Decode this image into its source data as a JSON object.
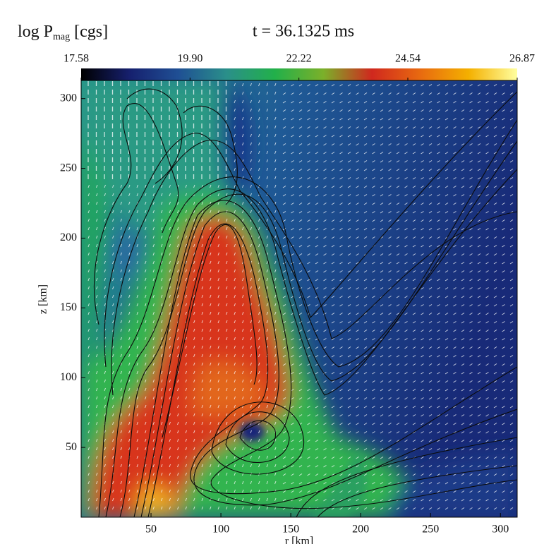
{
  "chart_data": {
    "type": "heatmap",
    "title": "log P",
    "title_sub": "mag",
    "title_unit": "[cgs]",
    "subtitle": "t = 36.1325 ms",
    "xlabel": "r [km]",
    "ylabel": "z [km]",
    "xlim": [
      0,
      312
    ],
    "ylim": [
      0,
      313
    ],
    "xticks": [
      50,
      100,
      150,
      200,
      250,
      300
    ],
    "yticks": [
      50,
      100,
      150,
      200,
      250,
      300
    ],
    "colorbar": {
      "lim": [
        17.58,
        26.87
      ],
      "ticks": [
        17.58,
        {
          "value": 19.9,
          "label": "19.90"
        },
        22.22,
        24.54,
        26.87
      ],
      "colors": [
        "#000000",
        "#16206e",
        "#1f4f94",
        "#2a8f8a",
        "#22b04a",
        "#7bb02a",
        "#d0281e",
        "#e86a10",
        "#f4b000",
        "#ffffa0"
      ]
    }
  }
}
